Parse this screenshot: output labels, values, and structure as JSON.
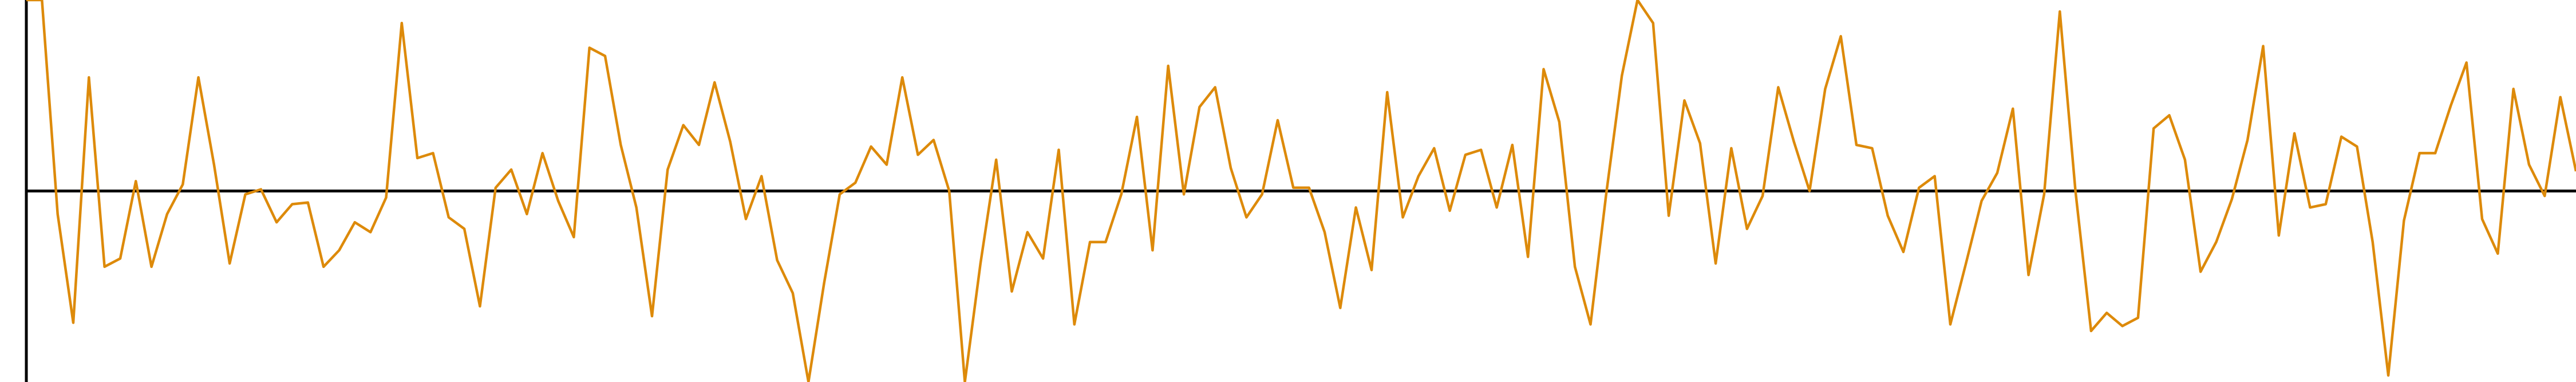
{
  "chart_data": {
    "type": "line",
    "color": "#dd8a0a",
    "ylim": [
      -116,
      116
    ],
    "values": [
      116,
      116,
      -14,
      -80,
      69,
      -46,
      -41,
      6,
      -46,
      -14,
      4,
      69,
      16,
      -44,
      -2,
      1,
      -19,
      -8,
      -7,
      -46,
      -36,
      -19,
      -25,
      -4,
      102,
      20,
      23,
      -16,
      -23,
      -70,
      2,
      13,
      -14,
      23,
      -6,
      -28,
      87,
      82,
      28,
      -10,
      -76,
      13,
      40,
      28,
      66,
      30,
      -17,
      9,
      -42,
      -62,
      -116,
      -56,
      -2,
      5,
      27,
      16,
      69,
      22,
      31,
      0,
      -116,
      -44,
      19,
      -61,
      -25,
      -41,
      25,
      -81,
      -31,
      -31,
      -2,
      45,
      -36,
      76,
      -2,
      51,
      63,
      14,
      -16,
      -2,
      43,
      2,
      2,
      -25,
      -71,
      -10,
      -48,
      60,
      -16,
      9,
      26,
      -12,
      22,
      25,
      -10,
      28,
      -40,
      74,
      42,
      -46,
      -81,
      -2,
      70,
      116,
      102,
      -15,
      55,
      29,
      -44,
      26,
      -23,
      -3,
      63,
      30,
      0,
      62,
      94,
      28,
      26,
      -15,
      -37,
      2,
      9,
      -81,
      -44,
      -6,
      11,
      50,
      -51,
      -2,
      109,
      0,
      -85,
      -74,
      -82,
      -77,
      38,
      46,
      19,
      -49,
      -31,
      -5,
      31,
      88,
      -27,
      35,
      -10,
      -8,
      33,
      27,
      -31,
      -112,
      -18,
      23,
      23,
      52,
      78,
      -17,
      -38,
      62,
      16,
      -3,
      57,
      12
    ]
  }
}
